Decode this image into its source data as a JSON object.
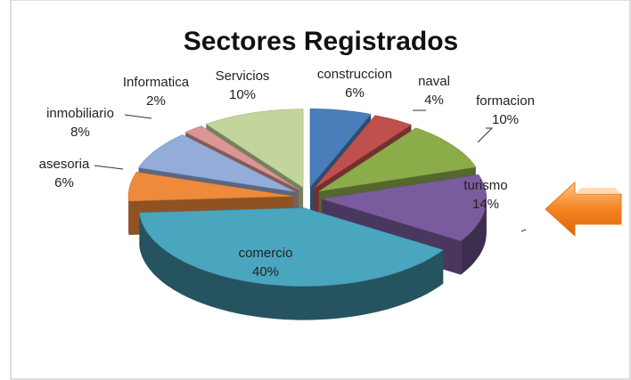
{
  "chart_data": {
    "type": "pie",
    "title": "Sectores Registrados",
    "categories": [
      "construccion",
      "naval",
      "formacion",
      "turismo",
      "comercio",
      "asesoria",
      "inmobiliario",
      "Informatica",
      "Servicios"
    ],
    "values": [
      6,
      4,
      10,
      14,
      40,
      6,
      8,
      2,
      10
    ],
    "value_labels": [
      "6%",
      "4%",
      "10%",
      "14%",
      "40%",
      "6%",
      "8%",
      "2%",
      "10%"
    ],
    "colors": [
      "#4a7ebb",
      "#c0504d",
      "#8cac4a",
      "#7a5c9e",
      "#4aa5bf",
      "#ef8a3a",
      "#93acd9",
      "#d99694",
      "#c2d59c"
    ]
  }
}
